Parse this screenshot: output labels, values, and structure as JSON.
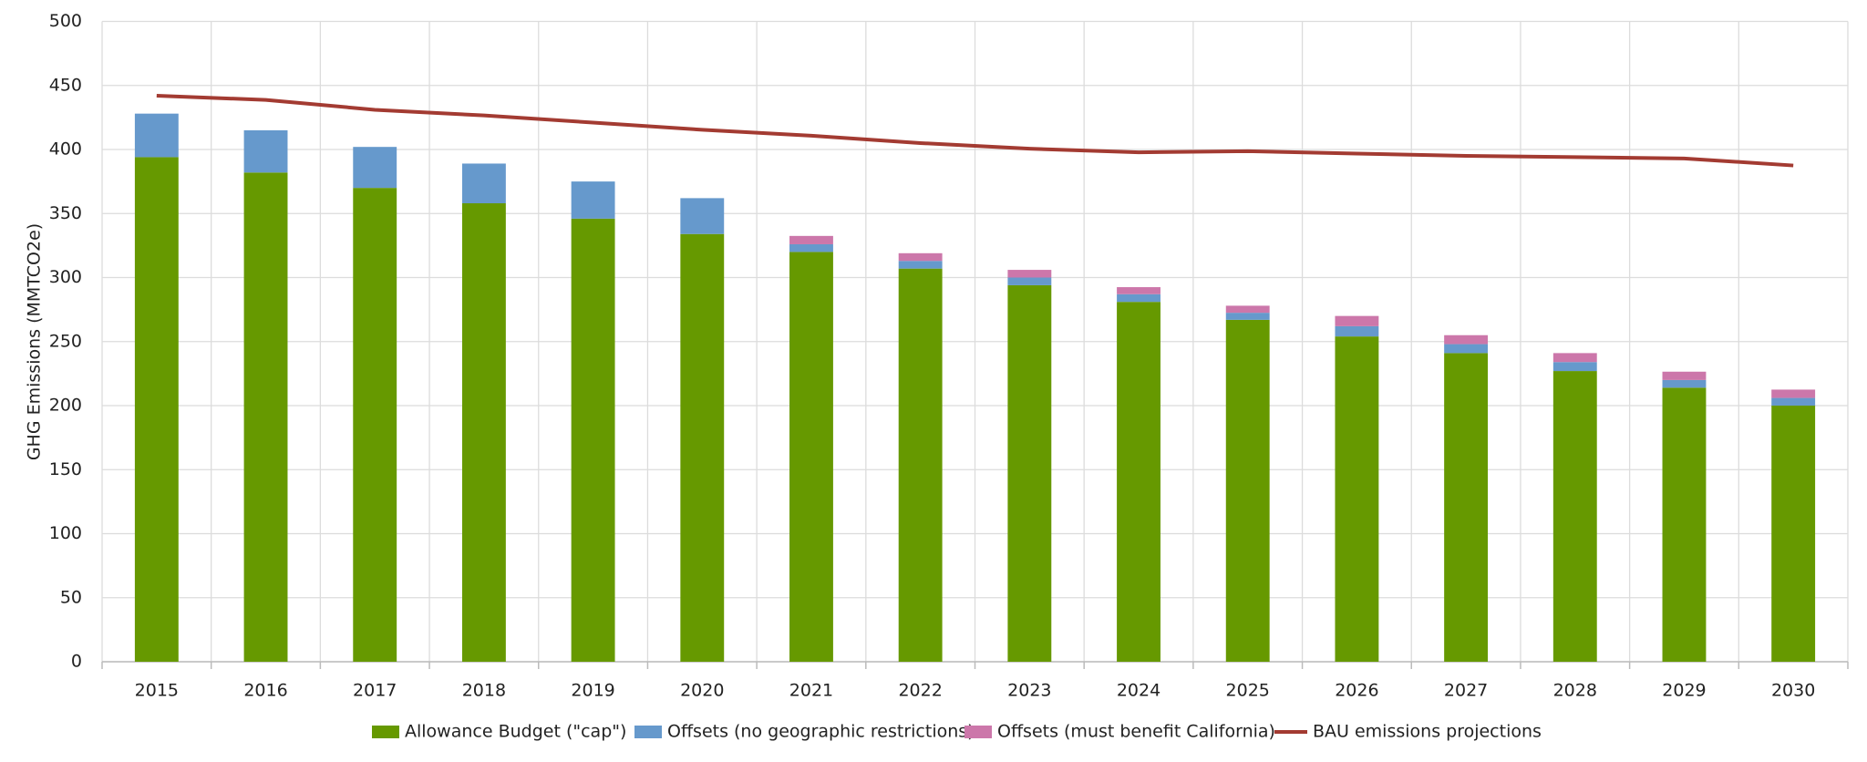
{
  "chart_data": {
    "type": "bar",
    "y_label": "GHG Emissions (MMTCO2e)",
    "categories": [
      "2015",
      "2016",
      "2017",
      "2018",
      "2019",
      "2020",
      "2021",
      "2022",
      "2023",
      "2024",
      "2025",
      "2026",
      "2027",
      "2028",
      "2029",
      "2030"
    ],
    "series": [
      {
        "name": "Allowance Budget (\"cap\")",
        "type": "bar",
        "color": "#669900",
        "values": [
          394,
          382,
          370,
          358,
          346,
          334,
          320,
          307,
          294,
          281,
          267,
          254,
          241,
          227,
          214,
          200
        ]
      },
      {
        "name": "Offsets (no geographic restrictions)",
        "type": "bar",
        "color": "#6699cc",
        "values": [
          34,
          33,
          32,
          31,
          29,
          28,
          6,
          6,
          6,
          6,
          5.5,
          8,
          7,
          7,
          6,
          6
        ]
      },
      {
        "name": "Offsets (must benefit California)",
        "type": "bar",
        "color": "#cc77aa",
        "values": [
          0,
          0,
          0,
          0,
          0,
          0,
          6.5,
          6,
          6,
          5.5,
          5.5,
          8,
          7,
          7,
          6.5,
          6.5
        ]
      },
      {
        "name": "BAU emissions projections",
        "type": "line",
        "color": "#a33b32",
        "values": [
          442,
          438.7,
          431,
          426.6,
          421,
          415.4,
          410.8,
          405,
          400.6,
          397.8,
          398.7,
          396.8,
          395,
          394,
          393,
          387.5
        ]
      }
    ],
    "ylim": [
      0,
      500
    ],
    "yticks": [
      0,
      50,
      100,
      150,
      200,
      250,
      300,
      350,
      400,
      450,
      500
    ],
    "grid": true,
    "legend": "bottom"
  }
}
